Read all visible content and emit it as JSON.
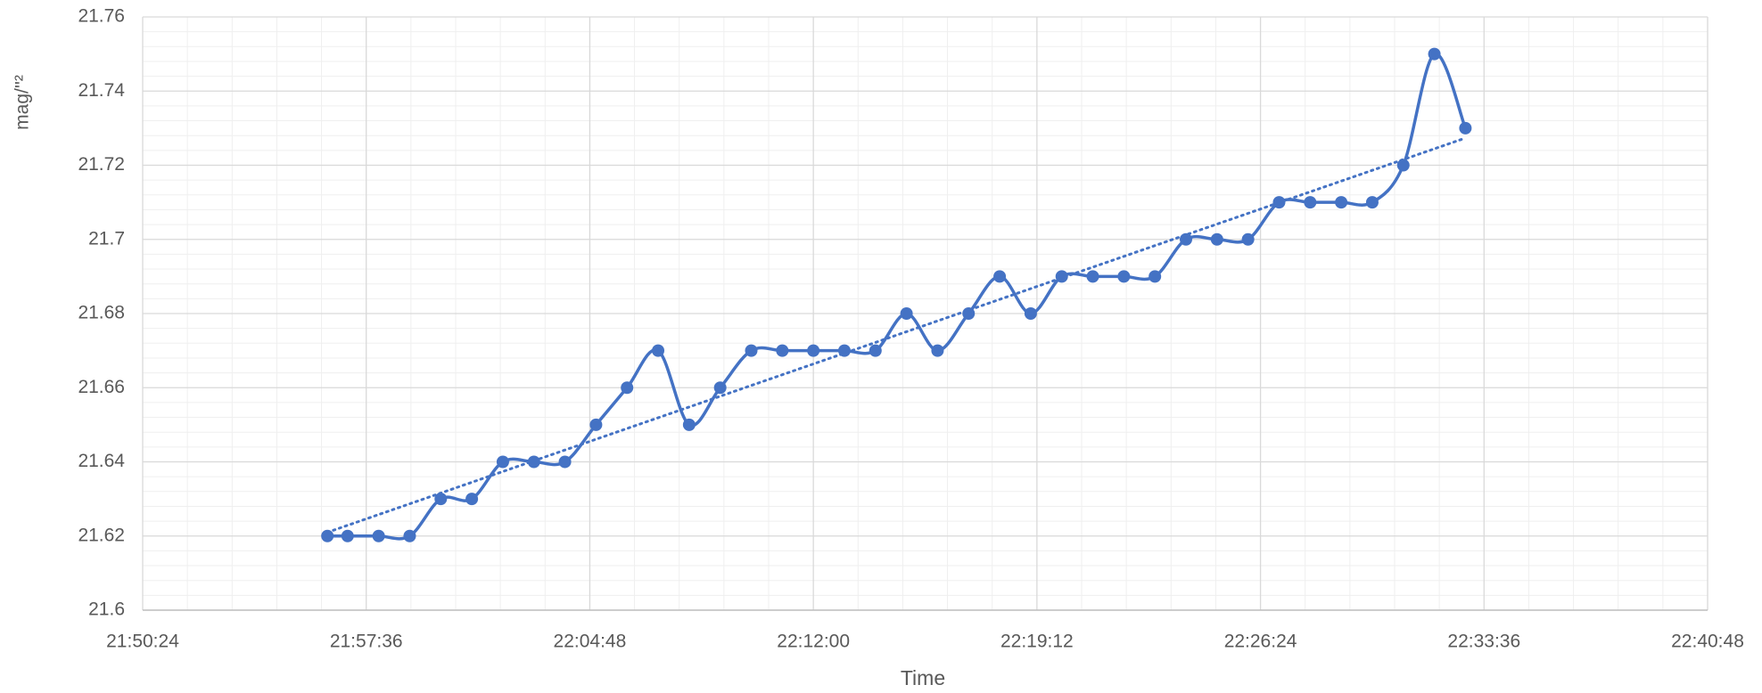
{
  "chart_data": {
    "type": "line",
    "x_label": "Time",
    "y_label": "mag/''²",
    "x": [
      "21:56:21",
      "21:57:00",
      "21:58:00",
      "21:59:00",
      "22:00:00",
      "22:01:00",
      "22:02:00",
      "22:03:00",
      "22:04:00",
      "22:05:00",
      "22:06:00",
      "22:07:00",
      "22:08:00",
      "22:09:00",
      "22:10:00",
      "22:11:00",
      "22:12:00",
      "22:13:00",
      "22:14:00",
      "22:15:00",
      "22:16:00",
      "22:17:00",
      "22:18:00",
      "22:19:00",
      "22:20:00",
      "22:21:00",
      "22:22:00",
      "22:23:00",
      "22:24:00",
      "22:25:00",
      "22:26:00",
      "22:27:00",
      "22:28:00",
      "22:29:00",
      "22:30:00",
      "22:31:00",
      "22:32:00",
      "22:33:00"
    ],
    "values": [
      21.62,
      21.62,
      21.62,
      21.62,
      21.63,
      21.63,
      21.64,
      21.64,
      21.64,
      21.65,
      21.66,
      21.67,
      21.65,
      21.66,
      21.67,
      21.67,
      21.67,
      21.67,
      21.67,
      21.68,
      21.67,
      21.68,
      21.69,
      21.68,
      21.69,
      21.69,
      21.69,
      21.69,
      21.7,
      21.7,
      21.7,
      21.71,
      21.71,
      21.71,
      21.71,
      21.72,
      21.75,
      21.73
    ],
    "color": "#4472c4",
    "smooth": true,
    "trendline": true,
    "xlim": [
      "21:50:24",
      "22:40:48"
    ],
    "xticks": [
      "21:50:24",
      "21:57:36",
      "22:04:48",
      "22:12:00",
      "22:19:12",
      "22:26:24",
      "22:33:36",
      "22:40:48"
    ],
    "ylim": [
      21.6,
      21.76
    ],
    "yticks": [
      21.6,
      21.62,
      21.64,
      21.66,
      21.68,
      21.7,
      21.72,
      21.74,
      21.76
    ],
    "grid": true,
    "minor_grid": true
  }
}
